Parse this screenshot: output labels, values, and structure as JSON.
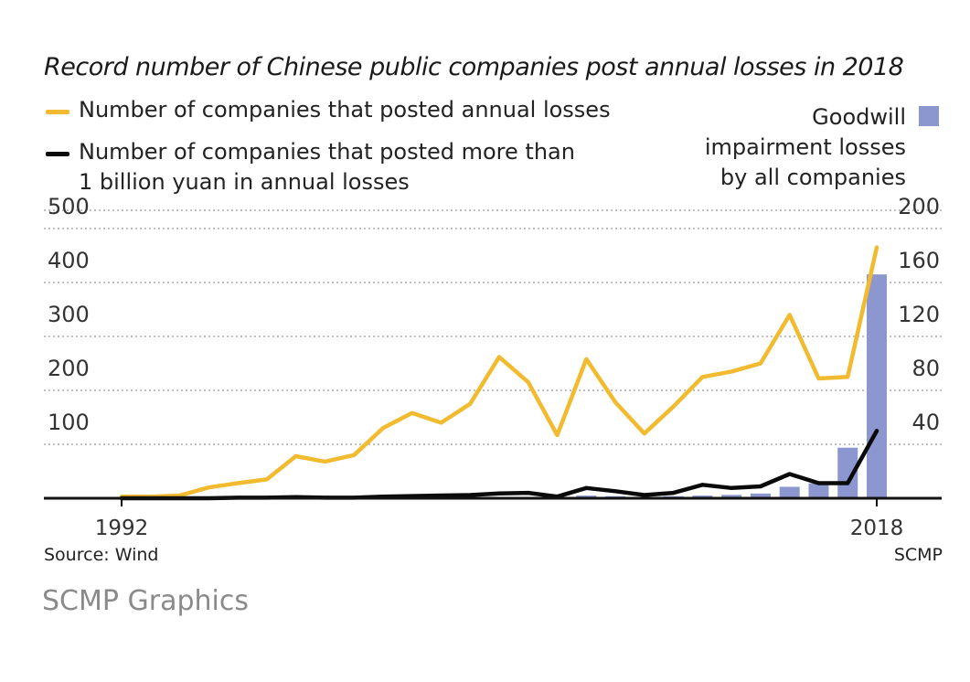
{
  "colors": {
    "total_losses_line": "#f2bb2f",
    "billion_losses_line": "#0a0a0a",
    "goodwill_bars": "#8c97cf",
    "gridline": "#9a9a9a",
    "baseline": "#111111",
    "muted_text": "#8a8a8a"
  },
  "chart_data": {
    "type": "bar+line",
    "title": "Record number of Chinese public companies post annual losses in 2018",
    "x": [
      1992,
      1993,
      1994,
      1995,
      1996,
      1997,
      1998,
      1999,
      2000,
      2001,
      2002,
      2003,
      2004,
      2005,
      2006,
      2007,
      2008,
      2009,
      2010,
      2011,
      2012,
      2013,
      2014,
      2015,
      2016,
      2017,
      2018
    ],
    "x_tick_labels": [
      "1992",
      "2018"
    ],
    "left_axis": {
      "ylim": [
        0,
        500
      ],
      "ticks": [
        100,
        200,
        300,
        400,
        500
      ],
      "tick_labels": [
        "100",
        "200",
        "300",
        "400",
        "500"
      ]
    },
    "right_axis": {
      "ylim": [
        0,
        200
      ],
      "ticks": [
        40,
        80,
        120,
        160,
        200
      ],
      "tick_labels": [
        "40",
        "80",
        "120",
        "160",
        "200"
      ]
    },
    "grid": true,
    "series": [
      {
        "name": "Number of companies that posted annual losses",
        "type": "line",
        "axis": "left",
        "values": [
          3,
          3,
          5,
          20,
          28,
          35,
          78,
          68,
          80,
          130,
          158,
          140,
          175,
          262,
          215,
          117,
          258,
          178,
          120,
          170,
          225,
          235,
          250,
          340,
          222,
          225,
          465
        ]
      },
      {
        "name": "Number of companies that posted more than 1 billion yuan in annual losses",
        "type": "line",
        "axis": "left",
        "values": [
          0,
          0,
          0,
          0,
          1,
          1,
          2,
          1,
          1,
          3,
          4,
          5,
          6,
          9,
          10,
          3,
          19,
          13,
          6,
          10,
          25,
          19,
          22,
          45,
          28,
          28,
          125
        ]
      },
      {
        "name": "Goodwill impairment losses by all companies",
        "type": "bar",
        "axis": "right",
        "values": [
          0,
          0,
          0,
          0,
          0,
          0,
          0,
          0,
          0,
          0,
          0,
          0,
          0.5,
          1,
          1,
          1,
          2,
          1.5,
          1,
          1.5,
          2,
          2.5,
          3.5,
          8.5,
          11,
          37.5,
          166
        ]
      }
    ],
    "legend": {
      "left_line1": "Number of companies that posted annual losses",
      "left_line2a": "Number of companies that posted more than",
      "left_line2b": "1 billion yuan in annual losses",
      "right_a": "Goodwill",
      "right_b": "impairment losses",
      "right_c": "by all companies",
      "placement": "top"
    }
  },
  "footer": {
    "source": "Source: Wind",
    "credit": "SCMP",
    "graphics": "SCMP Graphics"
  }
}
